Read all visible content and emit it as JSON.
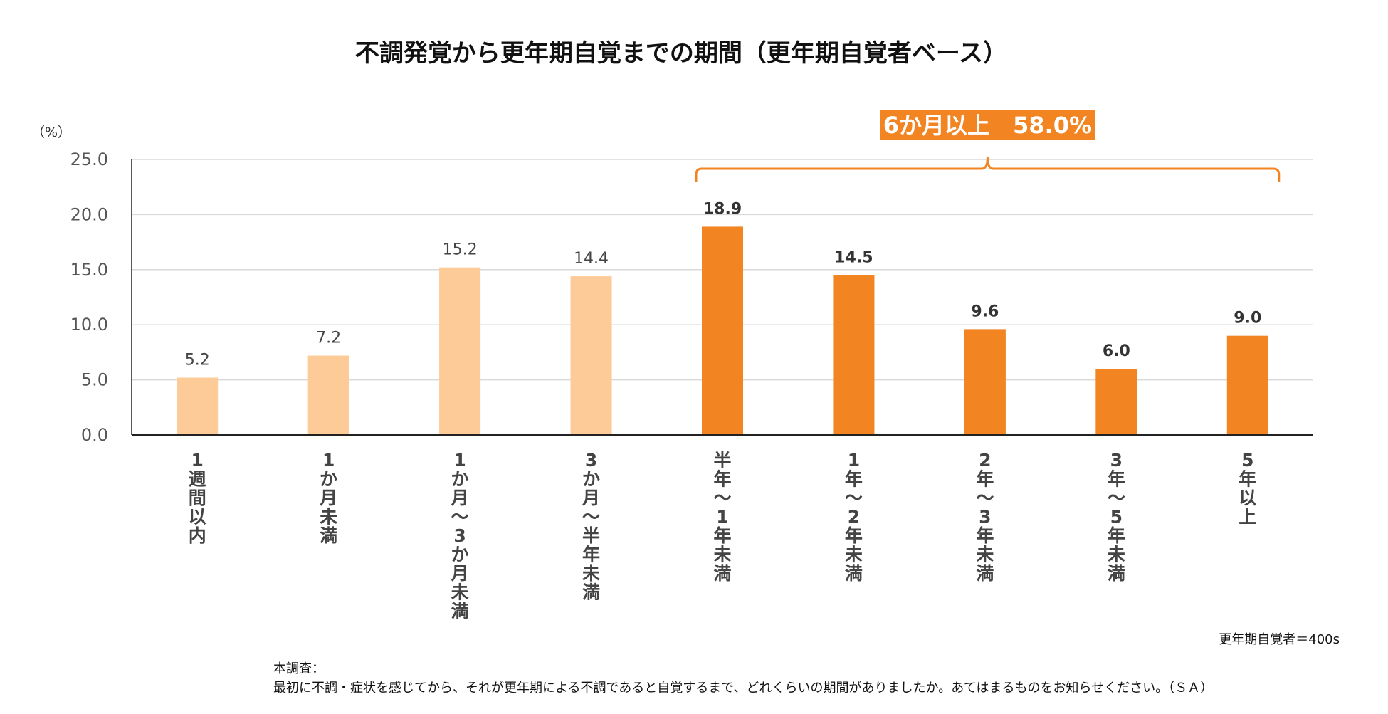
{
  "chart_data": {
    "type": "bar",
    "title": "不調発覚から更年期自覚までの期間（更年期自覚者ベース）",
    "y_unit_label": "（%）",
    "ylim": [
      0,
      25
    ],
    "yticks": [
      "0.0",
      "5.0",
      "10.0",
      "15.0",
      "20.0",
      "25.0"
    ],
    "grid": true,
    "categories": [
      "1週間以内",
      "1か月未満",
      "1か月～3か月未満",
      "3か月～半年未満",
      "半年～1年未満",
      "1年～2年未満",
      "2年～3年未満",
      "3年～5年未満",
      "5年以上"
    ],
    "category_lines": [
      [
        "1",
        "週",
        "間",
        "以",
        "内"
      ],
      [
        "1",
        "か",
        "月",
        "未",
        "満"
      ],
      [
        "1",
        "か",
        "月",
        "～",
        "3",
        "か",
        "月",
        "未",
        "満"
      ],
      [
        "3",
        "か",
        "月",
        "～",
        "半",
        "年",
        "未",
        "満"
      ],
      [
        "半",
        "年",
        "～",
        "1",
        "年",
        "未",
        "満"
      ],
      [
        "1",
        "年",
        "～",
        "2",
        "年",
        "未",
        "満"
      ],
      [
        "2",
        "年",
        "～",
        "3",
        "年",
        "未",
        "満"
      ],
      [
        "3",
        "年",
        "～",
        "5",
        "年",
        "未",
        "満"
      ],
      [
        "5",
        "年",
        "以",
        "上"
      ]
    ],
    "values": [
      5.2,
      7.2,
      15.2,
      14.4,
      18.9,
      14.5,
      9.6,
      6.0,
      9.0
    ],
    "value_labels": [
      "5.2",
      "7.2",
      "15.2",
      "14.4",
      "18.9",
      "14.5",
      "9.6",
      "6.0",
      "9.0"
    ],
    "highlighted": [
      false,
      false,
      false,
      false,
      true,
      true,
      true,
      true,
      true
    ],
    "highlight_label": "6か月以上　58.0%",
    "colors": {
      "light": "#FCCB98",
      "dark": "#F28422",
      "highlight_box": "#F28422",
      "bracket": "#F28422",
      "grid": "#D9D9D9",
      "axis": "#222222"
    }
  },
  "footer": {
    "sample_size": "更年期自覚者＝400s",
    "question_label": "本調査：",
    "question_text": "最初に不調・症状を感じてから、それが更年期による不調であると自覚するまで、どれくらいの期間がありましたか。あてはまるものをお知らせください。（ＳＡ）"
  }
}
